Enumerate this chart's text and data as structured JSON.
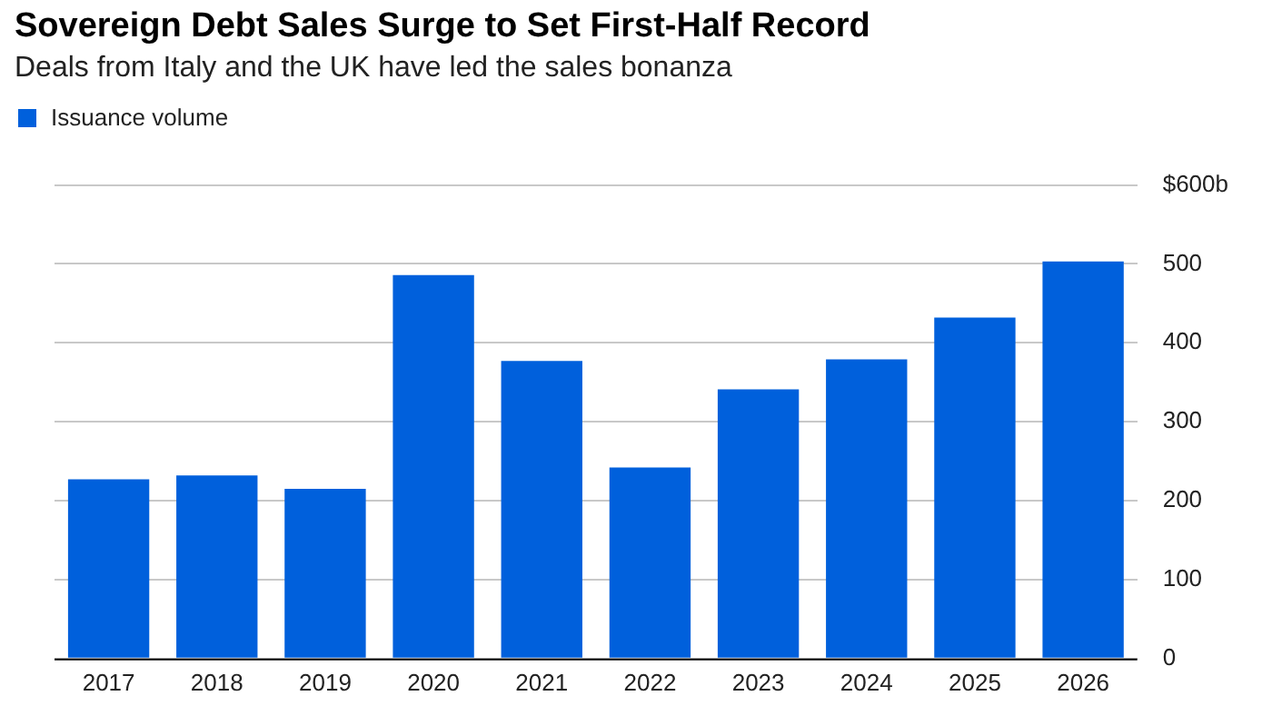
{
  "chart_data": {
    "type": "bar",
    "title": "Sovereign Debt Sales Surge to Set First-Half Record",
    "subtitle": "Deals from Italy and the UK have led the sales bonanza",
    "categories": [
      "2017",
      "2018",
      "2019",
      "2020",
      "2021",
      "2022",
      "2023",
      "2024",
      "2025",
      "2026"
    ],
    "series": [
      {
        "name": "Issuance volume",
        "color": "#0060dc",
        "values": [
          227,
          232,
          215,
          486,
          377,
          242,
          341,
          379,
          432,
          503
        ]
      }
    ],
    "ylim": [
      0,
      600
    ],
    "yticks": [
      0,
      100,
      200,
      300,
      400,
      500,
      {
        "value": 600,
        "label": "$600b"
      }
    ],
    "grid": "y",
    "legend": "top left"
  }
}
